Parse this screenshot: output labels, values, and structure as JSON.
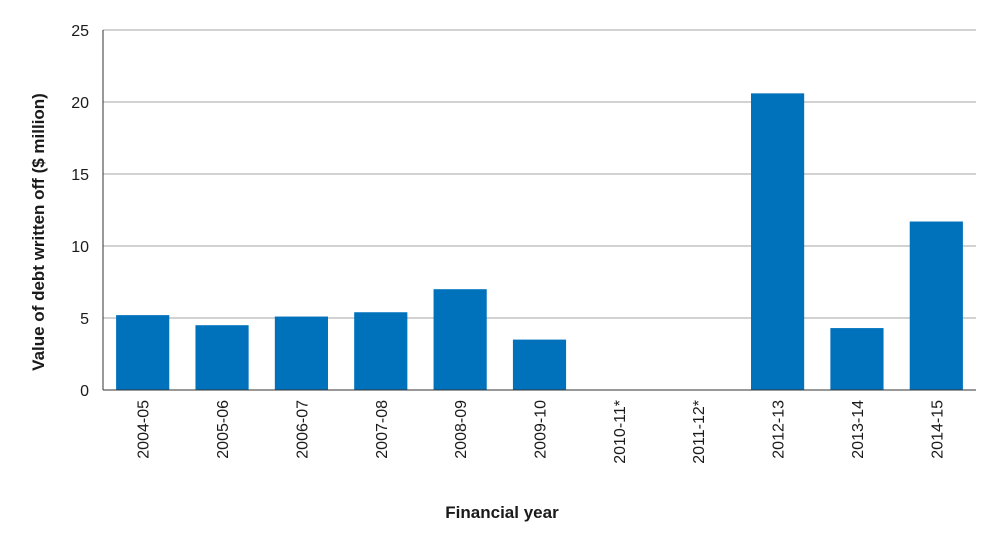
{
  "chart_data": {
    "type": "bar",
    "title": "",
    "xlabel": "Financial year",
    "ylabel": "Value of debt written off ($ million)",
    "ylim": [
      0,
      25
    ],
    "yticks": [
      0,
      5,
      10,
      15,
      20,
      25
    ],
    "grid": true,
    "categories": [
      "2004-05",
      "2005-06",
      "2006-07",
      "2007-08",
      "2008-09",
      "2009-10",
      "2010-11*",
      "2011-12*",
      "2012-13",
      "2013-14",
      "2014-15"
    ],
    "values": [
      5.2,
      4.5,
      5.1,
      5.4,
      7.0,
      3.5,
      0,
      0,
      20.6,
      4.3,
      11.7
    ],
    "bar_color": "#0072bc",
    "grid_color": "#a6a6a6"
  }
}
